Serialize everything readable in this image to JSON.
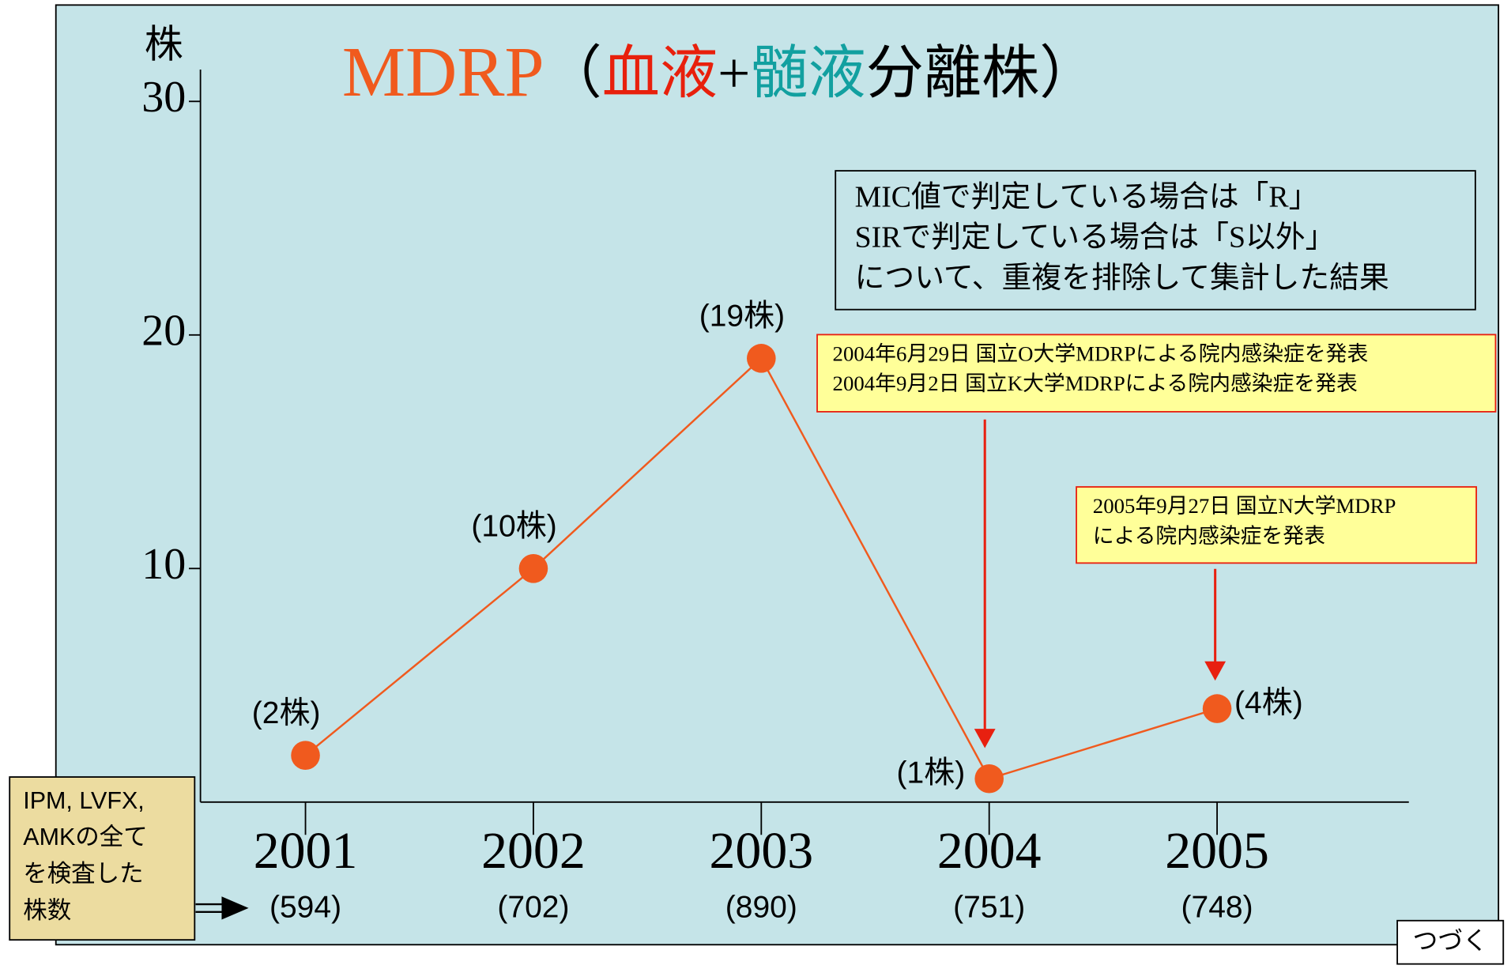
{
  "chart_data": {
    "type": "line",
    "title_parts": [
      {
        "text": "MDRP",
        "color": "#f05a1e"
      },
      {
        "text": "（",
        "color": "#000000"
      },
      {
        "text": "血液",
        "color": "#e8200c"
      },
      {
        "text": "+",
        "color": "#000000"
      },
      {
        "text": "髄液",
        "color": "#12a0a0"
      },
      {
        "text": "分離株）",
        "color": "#000000"
      }
    ],
    "y_label": "株",
    "categories": [
      "2001",
      "2002",
      "2003",
      "2004",
      "2005"
    ],
    "category_sublabels": [
      "(594)",
      "(702)",
      "(890)",
      "(751)",
      "(748)"
    ],
    "values": [
      2,
      10,
      19,
      1,
      4
    ],
    "value_labels": [
      "(2株)",
      "(10株)",
      "(19株)",
      "(1株)",
      "(4株)"
    ],
    "color": "#f05a1e",
    "ylim": [
      0,
      30
    ],
    "yticks": [
      10,
      20,
      30
    ],
    "note": [
      "MIC値で判定している場合は「R」",
      "SIRで判定している場合は「S以外」",
      "について、重複を排除して集計した結果"
    ],
    "events": [
      {
        "lines": [
          "2004年6月29日 国立O大学MDRPによる院内感染症を発表",
          "2004年9月2日 国立K大学MDRPによる院内感染症を発表"
        ]
      },
      {
        "lines": [
          "2005年9月27日 国立N大学MDRP",
          "による院内感染症を発表"
        ]
      }
    ],
    "sublabel_note": [
      "IPM, LVFX,",
      "AMKの全て",
      "を検査した",
      "株数"
    ],
    "continue_label": "つづく"
  }
}
